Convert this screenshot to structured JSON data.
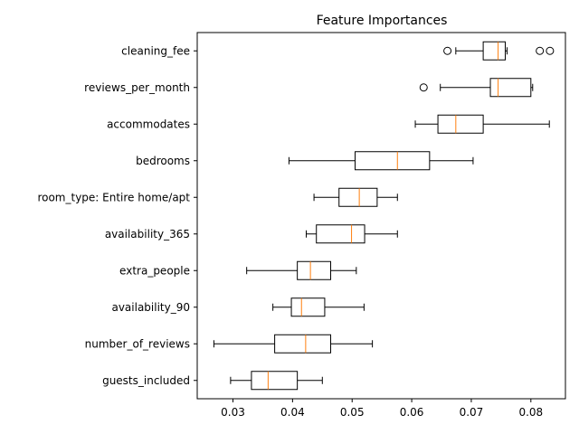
{
  "chart_data": {
    "type": "boxplot",
    "orientation": "horizontal",
    "title": "Feature Importances",
    "xlabel": "",
    "ylabel": "",
    "xlim": [
      0.024,
      0.0858
    ],
    "xticks": [
      0.03,
      0.04,
      0.05,
      0.06,
      0.07,
      0.08
    ],
    "xtick_labels": [
      "0.03",
      "0.04",
      "0.05",
      "0.06",
      "0.07",
      "0.08"
    ],
    "grid": false,
    "colors": {
      "box": "#000000",
      "median": "#ff7f0e"
    },
    "categories": [
      "cleaning_fee",
      "reviews_per_month",
      "accommodates",
      "bedrooms",
      "room_type: Entire home/apt",
      "availability_365",
      "extra_people",
      "availability_90",
      "number_of_reviews",
      "guests_included"
    ],
    "boxes": [
      {
        "label": "cleaning_fee",
        "whislo": 0.0674,
        "q1": 0.072,
        "med": 0.0745,
        "q3": 0.0757,
        "whishi": 0.076,
        "fliers": [
          0.066,
          0.0815,
          0.0832
        ]
      },
      {
        "label": "reviews_per_month",
        "whislo": 0.0648,
        "q1": 0.0732,
        "med": 0.0745,
        "q3": 0.08,
        "whishi": 0.0803,
        "fliers": [
          0.062
        ]
      },
      {
        "label": "accommodates",
        "whislo": 0.0606,
        "q1": 0.0644,
        "med": 0.0674,
        "q3": 0.072,
        "whishi": 0.0831,
        "fliers": []
      },
      {
        "label": "bedrooms",
        "whislo": 0.0394,
        "q1": 0.0505,
        "med": 0.0576,
        "q3": 0.063,
        "whishi": 0.0703,
        "fliers": []
      },
      {
        "label": "room_type: Entire home/apt",
        "whislo": 0.0436,
        "q1": 0.0478,
        "med": 0.0512,
        "q3": 0.0542,
        "whishi": 0.0576,
        "fliers": []
      },
      {
        "label": "availability_365",
        "whislo": 0.0423,
        "q1": 0.044,
        "med": 0.0499,
        "q3": 0.0521,
        "whishi": 0.0576,
        "fliers": []
      },
      {
        "label": "extra_people",
        "whislo": 0.0323,
        "q1": 0.0408,
        "med": 0.043,
        "q3": 0.0464,
        "whishi": 0.0507,
        "fliers": []
      },
      {
        "label": "availability_90",
        "whislo": 0.0367,
        "q1": 0.0398,
        "med": 0.0415,
        "q3": 0.0454,
        "whishi": 0.052,
        "fliers": []
      },
      {
        "label": "number_of_reviews",
        "whislo": 0.0268,
        "q1": 0.037,
        "med": 0.0422,
        "q3": 0.0464,
        "whishi": 0.0534,
        "fliers": []
      },
      {
        "label": "guests_included",
        "whislo": 0.0296,
        "q1": 0.0331,
        "med": 0.0359,
        "q3": 0.0408,
        "whishi": 0.045,
        "fliers": []
      }
    ]
  }
}
